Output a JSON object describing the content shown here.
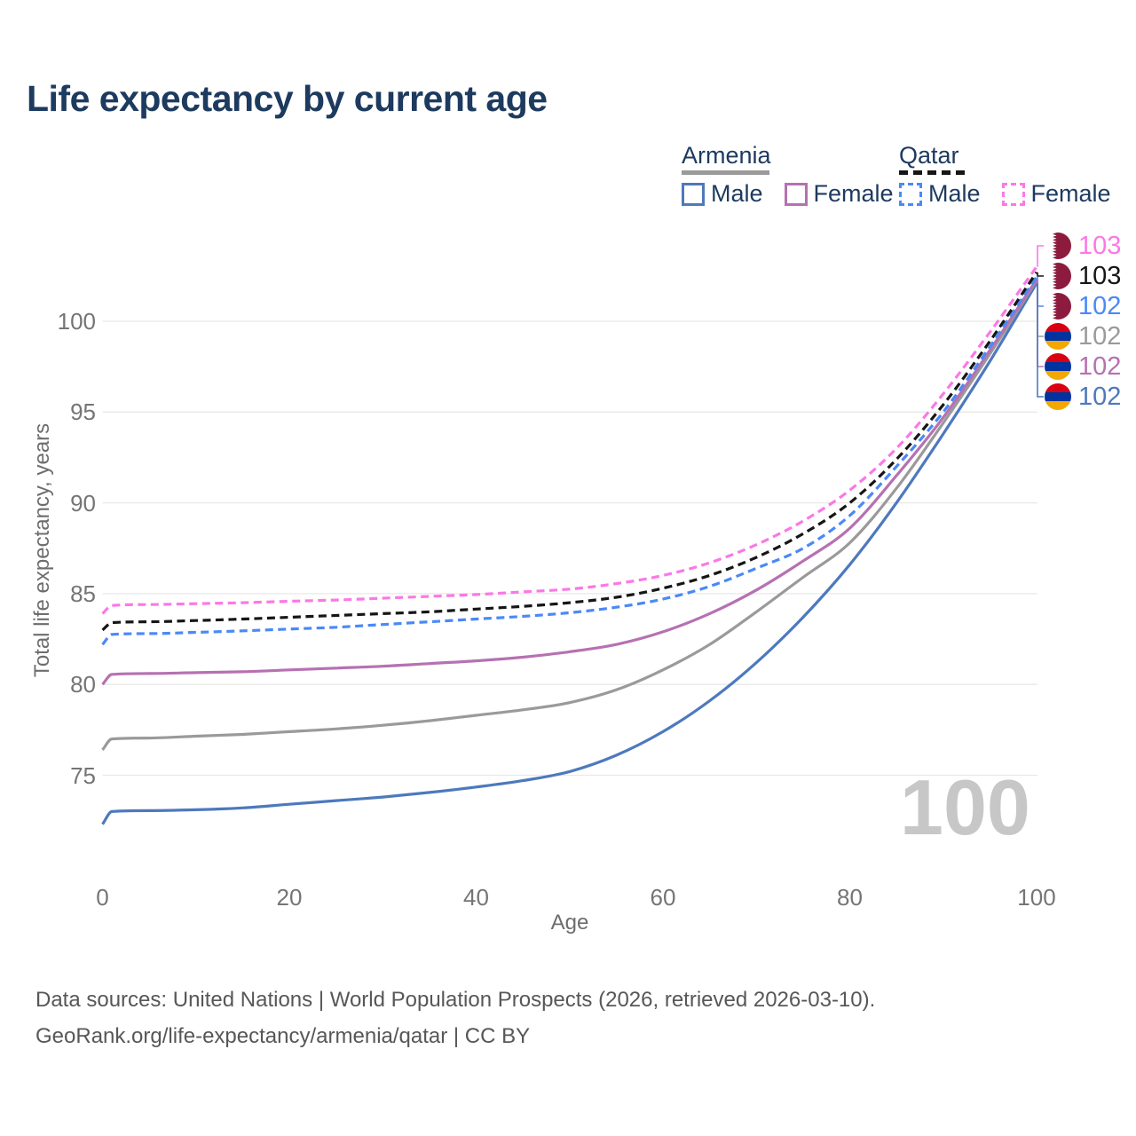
{
  "page": {
    "title": "Life expectancy by current age"
  },
  "legend": {
    "groups": [
      {
        "label": "Armenia",
        "line_style": "solid",
        "underline_color": "#9a9a9a",
        "items": [
          {
            "label": "Male",
            "color": "#4d79bd",
            "dashed": false
          },
          {
            "label": "Female",
            "color": "#b671b2",
            "dashed": false
          }
        ]
      },
      {
        "label": "Qatar",
        "line_style": "dashed",
        "underline_color": "#161616",
        "items": [
          {
            "label": "Male",
            "color": "#4a89f7",
            "dashed": true
          },
          {
            "label": "Female",
            "color": "#fb78e6",
            "dashed": true
          }
        ]
      }
    ]
  },
  "chart_data": {
    "type": "line",
    "title": "Life expectancy by current age",
    "xlabel": "Age",
    "ylabel": "Total life expectancy, years",
    "x_ticks": [
      0,
      20,
      40,
      60,
      80,
      100
    ],
    "y_ticks": [
      75,
      80,
      85,
      90,
      95,
      100
    ],
    "xlim": [
      0,
      100
    ],
    "ylim": [
      75,
      100
    ],
    "grid": "horizontal",
    "x": [
      0,
      1,
      5,
      10,
      15,
      20,
      25,
      30,
      35,
      40,
      45,
      50,
      55,
      60,
      65,
      70,
      75,
      80,
      85,
      90,
      95,
      100
    ],
    "series": [
      {
        "key": "armenia_male",
        "name": "Armenia Male",
        "color": "#4d79bd",
        "dashed": false,
        "values": [
          72.3,
          73.0,
          73.05,
          73.1,
          73.2,
          73.4,
          73.6,
          73.8,
          74.05,
          74.35,
          74.7,
          75.2,
          76.1,
          77.4,
          79.1,
          81.2,
          83.7,
          86.6,
          90.0,
          93.8,
          97.8,
          102.1
        ]
      },
      {
        "key": "armenia_total",
        "name": "Armenia Both sexes",
        "color": "#9a9a9a",
        "dashed": false,
        "values": [
          76.4,
          77.0,
          77.05,
          77.15,
          77.25,
          77.4,
          77.55,
          77.75,
          78.0,
          78.3,
          78.6,
          79.0,
          79.7,
          80.8,
          82.2,
          84.0,
          85.9,
          87.8,
          90.8,
          94.4,
          98.2,
          102.25
        ]
      },
      {
        "key": "armenia_female",
        "name": "Armenia Female",
        "color": "#b671b2",
        "dashed": false,
        "values": [
          80.0,
          80.55,
          80.6,
          80.65,
          80.7,
          80.8,
          80.9,
          81.0,
          81.15,
          81.3,
          81.5,
          81.8,
          82.2,
          82.9,
          83.9,
          85.2,
          86.8,
          88.6,
          91.5,
          94.7,
          98.4,
          102.3
        ]
      },
      {
        "key": "qatar_male",
        "name": "Qatar Male",
        "color": "#4a89f7",
        "dashed": true,
        "values": [
          82.2,
          82.75,
          82.8,
          82.87,
          82.95,
          83.05,
          83.15,
          83.3,
          83.45,
          83.6,
          83.75,
          83.95,
          84.25,
          84.7,
          85.4,
          86.4,
          87.5,
          89.3,
          92.0,
          95.0,
          98.6,
          102.45
        ]
      },
      {
        "key": "qatar_total",
        "name": "Qatar Both sexes",
        "color": "#161616",
        "dashed": true,
        "values": [
          83.0,
          83.4,
          83.45,
          83.52,
          83.6,
          83.7,
          83.8,
          83.9,
          84.0,
          84.15,
          84.3,
          84.5,
          84.8,
          85.3,
          86.0,
          87.0,
          88.3,
          90.0,
          92.4,
          95.4,
          98.9,
          102.7
        ]
      },
      {
        "key": "qatar_female",
        "name": "Qatar Female",
        "color": "#fb78e6",
        "dashed": true,
        "values": [
          83.9,
          84.35,
          84.4,
          84.45,
          84.5,
          84.58,
          84.65,
          84.75,
          84.85,
          84.95,
          85.1,
          85.25,
          85.55,
          86.0,
          86.7,
          87.7,
          89.0,
          90.7,
          93.0,
          96.0,
          99.4,
          103.0
        ]
      }
    ],
    "end_labels": [
      {
        "series": "qatar_female",
        "flag": "qatar",
        "value": "103"
      },
      {
        "series": "qatar_total",
        "flag": "qatar",
        "value": "103"
      },
      {
        "series": "qatar_male",
        "flag": "qatar",
        "value": "102"
      },
      {
        "series": "armenia_total",
        "flag": "armenia",
        "value": "102"
      },
      {
        "series": "armenia_female",
        "flag": "armenia",
        "value": "102"
      },
      {
        "series": "armenia_male",
        "flag": "armenia",
        "value": "102"
      }
    ]
  },
  "watermark": "100",
  "footer": {
    "line1": "Data sources: United Nations | World Population Prospects (2026, retrieved 2026-03-10).",
    "line2": "GeoRank.org/life-expectancy/armenia/qatar | CC BY"
  },
  "colors": {
    "title": "#1d3a5f",
    "grid": "#e8e8e8",
    "tick_text": "#757575",
    "axis_title_text": "#6d6d6d",
    "watermark": "#c7c7c7",
    "footer_text": "#575757",
    "flag_qatar_maroon": "#8d1b3d",
    "flag_armenia_red": "#d90012",
    "flag_armenia_blue": "#0033a0",
    "flag_armenia_orange": "#f2a800"
  }
}
